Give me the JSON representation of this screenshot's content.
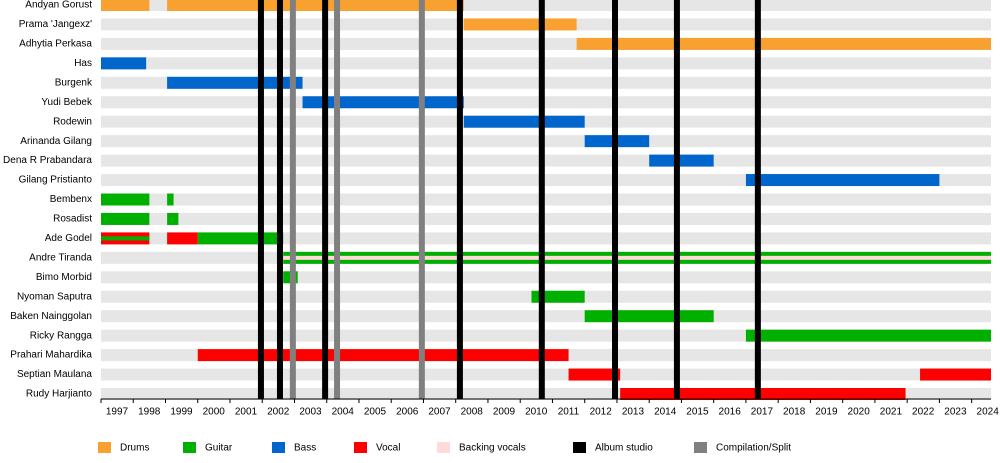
{
  "chart_data": {
    "type": "timeline",
    "categories": [
      "Andyan Gorust",
      "Prama 'Jangexz'",
      "Adhytia Perkasa",
      "Has",
      "Burgenk",
      "Yudi Bebek",
      "Rodewin",
      "Arinanda Gilang",
      "Dena R Prabandara",
      "Gilang Pristianto",
      "Bembenx",
      "Rosadist",
      "Ade Godel",
      "Andre Tiranda",
      "Bimo Morbid",
      "Nyoman Saputra",
      "Baken Nainggolan",
      "Ricky Rangga",
      "Prahari Mahardika",
      "Septian Maulana",
      "Rudy Harjianto"
    ],
    "xlim": [
      1997,
      2024.6
    ],
    "xticks": [
      1997,
      1998,
      1999,
      2000,
      2001,
      2002,
      2003,
      2004,
      2005,
      2006,
      2007,
      2008,
      2009,
      2010,
      2011,
      2012,
      2013,
      2014,
      2015,
      2016,
      2017,
      2018,
      2019,
      2020,
      2021,
      2022,
      2023,
      2024
    ],
    "series": [
      {
        "name": "Drums",
        "color": "#f8a030",
        "bars": [
          {
            "row": 0,
            "start": 1997,
            "end": 1998.5
          },
          {
            "row": 0,
            "start": 1999.05,
            "end": 2008.25
          },
          {
            "row": 1,
            "start": 2008.25,
            "end": 2011.75
          },
          {
            "row": 2,
            "start": 2011.75,
            "end": 2024.6
          }
        ]
      },
      {
        "name": "Guitar",
        "color": "#00b000",
        "bars": [
          {
            "row": 10,
            "start": 1997,
            "end": 1998.5
          },
          {
            "row": 10,
            "start": 1999.05,
            "end": 1999.25
          },
          {
            "row": 11,
            "start": 1997,
            "end": 1998.5
          },
          {
            "row": 11,
            "start": 1999.05,
            "end": 1999.4
          },
          {
            "row": 12,
            "start": 2000,
            "end": 2002.65
          },
          {
            "row": 13,
            "start": 2002.65,
            "end": 2024.6
          },
          {
            "row": 14,
            "start": 2002.65,
            "end": 2003.1
          },
          {
            "row": 15,
            "start": 2010.35,
            "end": 2012
          },
          {
            "row": 16,
            "start": 2012,
            "end": 2016
          },
          {
            "row": 17,
            "start": 2017,
            "end": 2024.6
          },
          {
            "row": 12,
            "start": 1997,
            "end": 1998.5,
            "thin": true
          }
        ]
      },
      {
        "name": "Bass",
        "color": "#0066cc",
        "bars": [
          {
            "row": 3,
            "start": 1997,
            "end": 1998.4
          },
          {
            "row": 4,
            "start": 1999.05,
            "end": 2003.25
          },
          {
            "row": 5,
            "start": 2003.25,
            "end": 2008.25
          },
          {
            "row": 6,
            "start": 2008.25,
            "end": 2012
          },
          {
            "row": 7,
            "start": 2012,
            "end": 2014
          },
          {
            "row": 8,
            "start": 2014,
            "end": 2016
          },
          {
            "row": 9,
            "start": 2017,
            "end": 2023
          }
        ]
      },
      {
        "name": "Vocal",
        "color": "#ff0000",
        "bars": [
          {
            "row": 12,
            "start": 1997,
            "end": 1998.5
          },
          {
            "row": 12,
            "start": 1999.05,
            "end": 2000
          },
          {
            "row": 18,
            "start": 2000,
            "end": 2011.5
          },
          {
            "row": 19,
            "start": 2011.5,
            "end": 2013.1
          },
          {
            "row": 19,
            "start": 2022.4,
            "end": 2024.6
          },
          {
            "row": 20,
            "start": 2013.1,
            "end": 2021.95
          }
        ]
      },
      {
        "name": "Backing vocals",
        "color": "#ffdada",
        "bars": [
          {
            "row": 13,
            "start": 2002.65,
            "end": 2024.6,
            "thin": true
          }
        ]
      }
    ],
    "events": [
      {
        "name": "Album studio",
        "color": "#000000",
        "x": [
          2001.96,
          2002.55,
          2003.95,
          2008.13,
          2010.67,
          2012.94,
          2014.86,
          2017.37
        ]
      },
      {
        "name": "Compilation/Split",
        "color": "#808080",
        "x": [
          2002.95,
          2004.32,
          2006.95
        ]
      }
    ]
  }
}
